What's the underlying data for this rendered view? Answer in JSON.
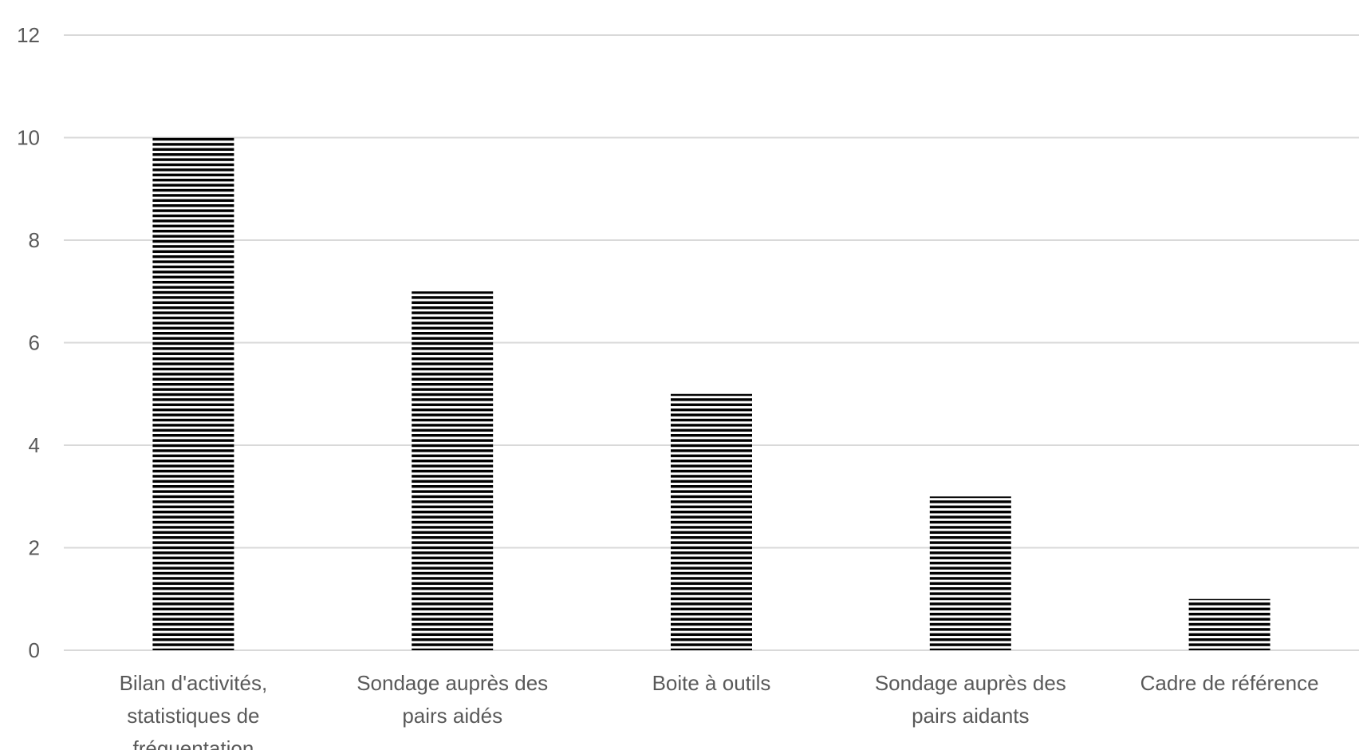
{
  "chart_data": {
    "type": "bar",
    "categories": [
      "Bilan d'activités, statistiques de fréquentation",
      "Sondage auprès des pairs aidés",
      "Boite à outils",
      "Sondage auprès des pairs aidants",
      "Cadre de référence"
    ],
    "category_lines": [
      [
        "Bilan d'activités,",
        "statistiques de",
        "fréquentation"
      ],
      [
        "Sondage auprès des",
        "pairs aidés"
      ],
      [
        "Boite à outils"
      ],
      [
        "Sondage auprès des",
        "pairs aidants"
      ],
      [
        "Cadre de référence"
      ]
    ],
    "values": [
      10,
      7,
      5,
      3,
      1
    ],
    "ylim": [
      0,
      12
    ],
    "yticks": [
      0,
      2,
      4,
      6,
      8,
      10,
      12
    ],
    "title": "",
    "xlabel": "",
    "ylabel": "",
    "grid": true,
    "legend": "none",
    "bar_pattern": "horizontal-stripes",
    "colors": {
      "bar": "#000000",
      "bar_gap": "#ffffff",
      "grid": "#d9d9d9",
      "text": "#595959"
    }
  }
}
